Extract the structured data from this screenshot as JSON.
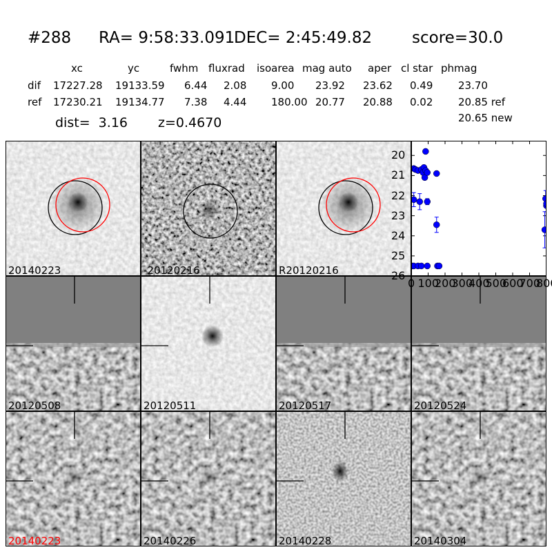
{
  "header": {
    "id": "#288",
    "ra": "RA= 9:58:33.091",
    "dec": "DEC= 2:45:49.82",
    "score": "score=30.0"
  },
  "table": {
    "columns": [
      "xc",
      "yc",
      "fwhm",
      "fluxrad",
      "isoarea",
      "mag auto",
      "aper",
      "cl star",
      "phmag"
    ],
    "rows": [
      {
        "label": "dif",
        "values": [
          "17227.28",
          "19133.59",
          "6.44",
          "2.08",
          "9.00",
          "23.92",
          "23.62",
          "0.49",
          "23.70"
        ]
      },
      {
        "label": "ref",
        "values": [
          "17230.21",
          "19134.77",
          "7.38",
          "4.44",
          "180.00",
          "20.77",
          "20.88",
          "0.02",
          "20.85 ref"
        ]
      }
    ],
    "extra": "20.65 new",
    "dist": "dist=  3.16",
    "z": "z=0.4670"
  },
  "panels": [
    {
      "label": "20140223",
      "style": "ref"
    },
    {
      "label": "-20120216",
      "style": "diff"
    },
    {
      "label": "R20120216",
      "style": "ref"
    },
    {
      "label": "20120508",
      "style": "edge"
    },
    {
      "label": "20120511",
      "style": "light"
    },
    {
      "label": "20120517",
      "style": "edge"
    },
    {
      "label": "20120524",
      "style": "edge"
    },
    {
      "label": "20140223",
      "style": "noise",
      "label_color": "#ff0000"
    },
    {
      "label": "20140226",
      "style": "noise"
    },
    {
      "label": "20140228",
      "style": "blob"
    },
    {
      "label": "20140304",
      "style": "noise"
    }
  ],
  "chart_data": {
    "type": "scatter",
    "xlim": [
      0,
      800
    ],
    "ylim": [
      26,
      19.27
    ],
    "y_inverted": true,
    "x_ticks": [
      "0",
      "100",
      "200",
      "300",
      "400",
      "500",
      "600",
      "700",
      "800"
    ],
    "y_ticks": [
      "20",
      "21",
      "22",
      "23",
      "24",
      "25",
      "26"
    ],
    "marker_color": "#0000ff",
    "points": [
      {
        "x": 85,
        "y": 19.8
      },
      {
        "x": 15,
        "y": 20.65
      },
      {
        "x": 25,
        "y": 20.7
      },
      {
        "x": 40,
        "y": 20.75
      },
      {
        "x": 60,
        "y": 20.7
      },
      {
        "x": 75,
        "y": 20.6
      },
      {
        "x": 70,
        "y": 20.85
      },
      {
        "x": 85,
        "y": 20.75
      },
      {
        "x": 80,
        "y": 21.1
      },
      {
        "x": 95,
        "y": 20.85
      },
      {
        "x": 150,
        "y": 20.9
      },
      {
        "x": 15,
        "y": 22.2,
        "err": 0.35
      },
      {
        "x": 50,
        "y": 22.3,
        "err": 0.4
      },
      {
        "x": 95,
        "y": 22.3,
        "err": 0.15
      },
      {
        "x": 150,
        "y": 23.45,
        "err": 0.38
      },
      {
        "x": 795,
        "y": 22.15,
        "err": 0.4
      },
      {
        "x": 800,
        "y": 22.5,
        "err": 0.3
      },
      {
        "x": 800,
        "y": 22.4
      },
      {
        "x": 790,
        "y": 23.7,
        "err": 0.9
      },
      {
        "x": 5,
        "y": 25.5
      },
      {
        "x": 15,
        "y": 25.5
      },
      {
        "x": 40,
        "y": 25.5
      },
      {
        "x": 60,
        "y": 25.5
      },
      {
        "x": 95,
        "y": 25.5
      },
      {
        "x": 155,
        "y": 25.5
      },
      {
        "x": 165,
        "y": 25.5
      }
    ]
  }
}
